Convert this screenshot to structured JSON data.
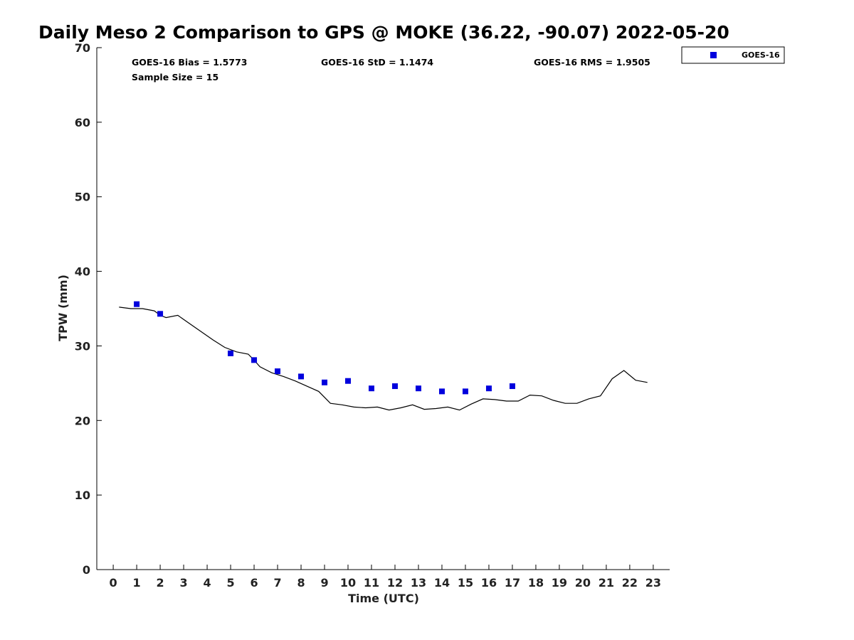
{
  "chart_data": {
    "type": "line",
    "title": "Daily Meso 2 Comparison to GPS @ MOKE (36.22, -90.07) 2022-05-20",
    "xlabel": "Time (UTC)",
    "ylabel": "TPW (mm)",
    "xlim": [
      -0.7,
      23.7
    ],
    "ylim": [
      0,
      70
    ],
    "x_ticks": [
      0,
      1,
      2,
      3,
      4,
      5,
      6,
      7,
      8,
      9,
      10,
      11,
      12,
      13,
      14,
      15,
      16,
      17,
      18,
      19,
      20,
      21,
      22,
      23
    ],
    "y_ticks": [
      0,
      10,
      20,
      30,
      40,
      50,
      60,
      70
    ],
    "grid": false,
    "legend_position": "top-right (outside)",
    "stats": {
      "bias": "GOES-16 Bias = 1.5773",
      "std": "GOES-16 StD = 1.1474",
      "rms": "GOES-16 RMS = 1.9505",
      "sample": "Sample Size = 15"
    },
    "series": [
      {
        "name": "GOES-16",
        "kind": "scatter",
        "marker": "square",
        "color": "#0000dd",
        "x": [
          1,
          2,
          5,
          6,
          7,
          8,
          9,
          10,
          11,
          12,
          13,
          14,
          15,
          16,
          17
        ],
        "y": [
          35.6,
          34.3,
          29.0,
          28.1,
          26.6,
          25.9,
          25.1,
          25.3,
          24.3,
          24.6,
          24.3,
          23.9,
          23.9,
          24.3,
          24.6
        ]
      },
      {
        "kind": "line",
        "color": "#000000",
        "x": [
          0.25,
          0.75,
          1.25,
          1.75,
          2.0,
          2.25,
          2.75,
          3.25,
          3.75,
          4.25,
          4.75,
          5.25,
          5.75,
          6.0,
          6.25,
          6.75,
          7.25,
          7.75,
          8.25,
          8.75,
          9.25,
          9.75,
          10.25,
          10.75,
          11.25,
          11.75,
          12.25,
          12.75,
          13.25,
          13.75,
          14.25,
          14.75,
          15.25,
          15.75,
          16.25,
          16.75,
          17.25,
          17.75,
          18.25,
          18.75,
          19.25,
          19.75,
          20.25,
          20.75,
          21.25,
          21.75,
          22.25,
          22.75
        ],
        "y": [
          35.2,
          35.0,
          35.0,
          34.7,
          34.1,
          33.8,
          34.1,
          33.0,
          31.9,
          30.8,
          29.8,
          29.2,
          28.9,
          28.1,
          27.2,
          26.4,
          25.9,
          25.3,
          24.6,
          23.9,
          22.3,
          22.1,
          21.8,
          21.7,
          21.8,
          21.4,
          21.7,
          22.1,
          21.5,
          21.6,
          21.8,
          21.4,
          22.2,
          22.9,
          22.8,
          22.6,
          22.6,
          23.4,
          23.3,
          22.7,
          22.3,
          22.3,
          22.9,
          23.3,
          25.6,
          26.7,
          25.4,
          25.1
        ]
      }
    ]
  }
}
